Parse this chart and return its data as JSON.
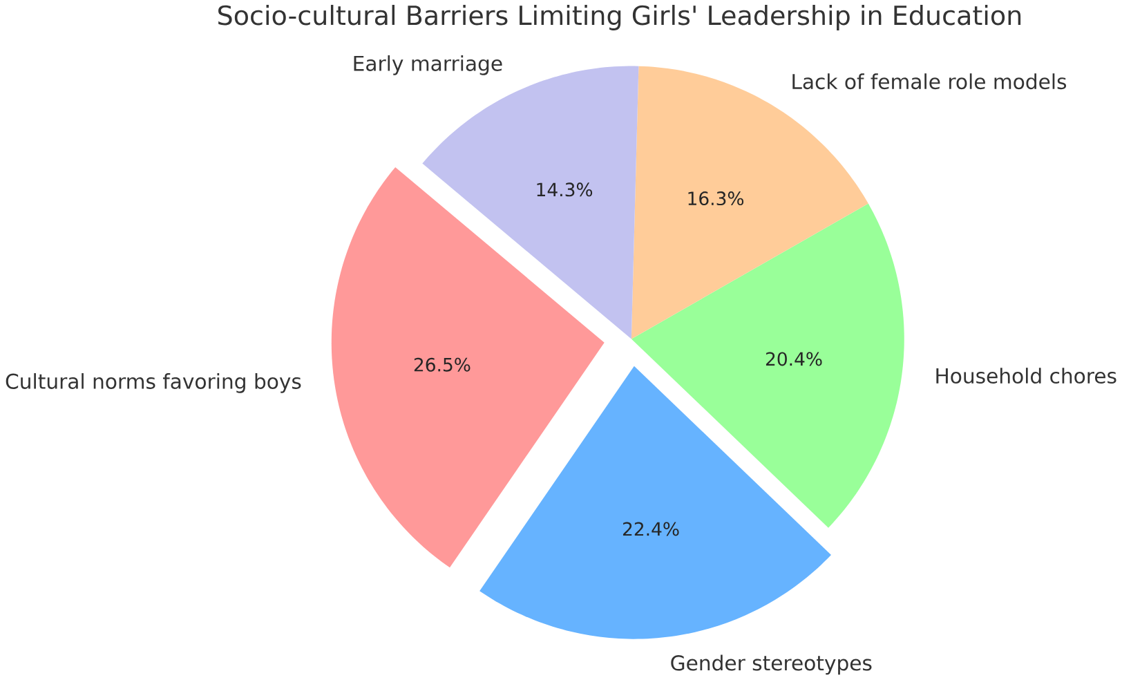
{
  "chart_data": {
    "type": "pie",
    "title": "Socio-cultural Barriers Limiting Girls' Leadership in Education",
    "categories": [
      "Cultural norms favoring boys",
      "Gender stereotypes",
      "Household chores",
      "Lack of female role models",
      "Early marriage"
    ],
    "values": [
      26.5,
      22.4,
      20.4,
      16.3,
      14.3
    ],
    "value_labels": [
      "26.5%",
      "22.4%",
      "20.4%",
      "16.3%",
      "14.3%"
    ],
    "colors": [
      "#ff9999",
      "#66b3ff",
      "#99ff99",
      "#ffcc99",
      "#c2c2f0"
    ]
  }
}
